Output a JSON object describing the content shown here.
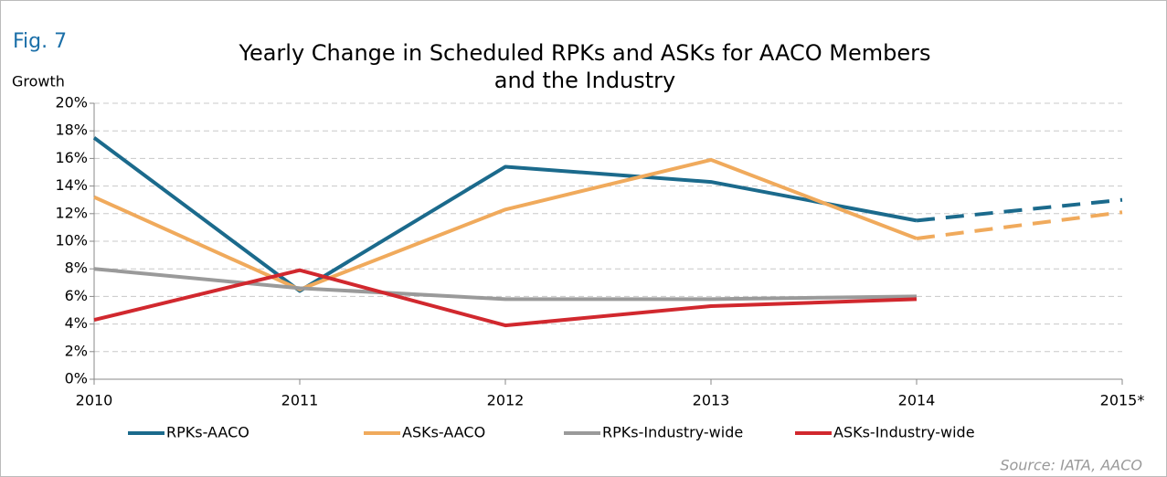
{
  "chart_data": {
    "type": "line",
    "figure_label": "Fig. 7",
    "title": [
      "Yearly Change in Scheduled RPKs and ASKs for AACO Members",
      "and the Industry"
    ],
    "y_axis_label": "Growth",
    "source": "Source: IATA, AACO",
    "categories": [
      "2010",
      "2011",
      "2012",
      "2013",
      "2014",
      "2015*"
    ],
    "series": [
      {
        "name": "RPKs-AACO",
        "color": "#1b6a8c",
        "values": [
          17.5,
          6.4,
          15.4,
          14.3,
          11.5,
          13.0
        ]
      },
      {
        "name": "ASKs-AACO",
        "color": "#f0aa5c",
        "values": [
          13.2,
          6.5,
          12.3,
          15.9,
          10.2,
          12.1
        ]
      },
      {
        "name": "RPKs-Industry-wide",
        "color": "#9a9a9a",
        "values": [
          8.0,
          6.6,
          5.8,
          5.8,
          6.0,
          null
        ]
      },
      {
        "name": "ASKs-Industry-wide",
        "color": "#d1282e",
        "values": [
          4.3,
          7.9,
          3.9,
          5.3,
          5.8,
          null
        ]
      }
    ],
    "dashed_last_segment": true,
    "ylim": [
      0,
      20
    ],
    "yticks": [
      {
        "value": 0,
        "label": "0%"
      },
      {
        "value": 2,
        "label": "2%"
      },
      {
        "value": 4,
        "label": "4%"
      },
      {
        "value": 6,
        "label": "6%"
      },
      {
        "value": 8,
        "label": "8%"
      },
      {
        "value": 10,
        "label": "10%"
      },
      {
        "value": 12,
        "label": "12%"
      },
      {
        "value": 14,
        "label": "14%"
      },
      {
        "value": 16,
        "label": "16%"
      },
      {
        "value": 18,
        "label": "18%"
      },
      {
        "value": 20,
        "label": "20%"
      }
    ],
    "grid": true,
    "legend": "bottom"
  }
}
